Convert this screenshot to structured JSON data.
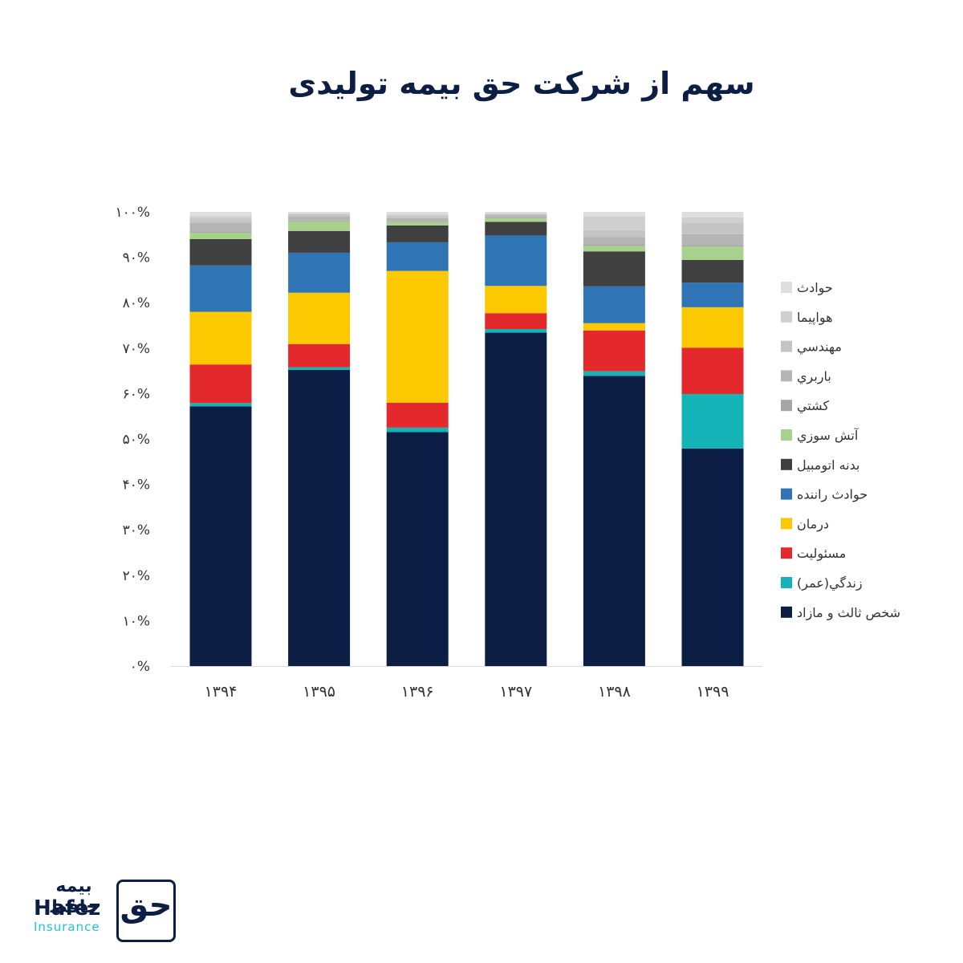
{
  "chart_data": {
    "type": "bar",
    "stacked": true,
    "normalized": true,
    "title": "سهم از شرکت حق بیمه تولیدی",
    "categories": [
      "۱۳۹۴",
      "۱۳۹۵",
      "۱۳۹۶",
      "۱۳۹۷",
      "۱۳۹۸",
      "۱۳۹۹"
    ],
    "ylim": [
      0,
      100
    ],
    "y_ticks": [
      "۰%",
      "۱۰%",
      "۲۰%",
      "۳۰%",
      "۴۰%",
      "۵۰%",
      "۶۰%",
      "۷۰%",
      "۸۰%",
      "۹۰%",
      "۱۰۰%"
    ],
    "y_tick_values": [
      0,
      10,
      20,
      30,
      40,
      50,
      60,
      70,
      80,
      90,
      100
    ],
    "legend_position": "right",
    "grid": false,
    "series": [
      {
        "name": "شخص ثالث و مازاد",
        "color": "#0c1e44",
        "values": [
          57.2,
          65.2,
          51.5,
          73.4,
          63.9,
          47.9
        ]
      },
      {
        "name": "زندگي(عمر)",
        "color": "#14b3b8",
        "values": [
          0.7,
          0.6,
          1.0,
          0.8,
          1.0,
          12.0
        ]
      },
      {
        "name": "مسئوليت",
        "color": "#e3292b",
        "values": [
          8.5,
          5.1,
          5.5,
          3.5,
          9.0,
          10.2
        ]
      },
      {
        "name": "درمان",
        "color": "#fcc800",
        "values": [
          11.6,
          11.3,
          29.0,
          6.0,
          1.6,
          8.9
        ]
      },
      {
        "name": "حوادث راننده",
        "color": "#2f74b5",
        "values": [
          10.2,
          8.8,
          6.3,
          11.1,
          8.1,
          5.4
        ]
      },
      {
        "name": "بدنه اتومبيل",
        "color": "#404040",
        "values": [
          5.8,
          4.8,
          3.7,
          3.0,
          7.7,
          5.0
        ]
      },
      {
        "name": "آتش سوزي",
        "color": "#a9d18e",
        "values": [
          1.4,
          2.1,
          0.8,
          0.8,
          1.2,
          3.0
        ]
      },
      {
        "name": "كشتي",
        "color": "#a6a6a6",
        "values": [
          0.3,
          0.2,
          0.2,
          0.2,
          0.4,
          0.3
        ]
      },
      {
        "name": "باربري",
        "color": "#b5b5b5",
        "values": [
          1.9,
          0.9,
          0.6,
          0.4,
          1.6,
          2.4
        ]
      },
      {
        "name": "مهندسي",
        "color": "#c4c4c4",
        "values": [
          0.9,
          0.5,
          0.5,
          0.3,
          1.5,
          2.5
        ]
      },
      {
        "name": "هواپيما",
        "color": "#cfcfcf",
        "values": [
          0.6,
          0.2,
          0.3,
          0.2,
          3.0,
          1.2
        ]
      },
      {
        "name": "حوادث",
        "color": "#dedede",
        "values": [
          0.9,
          0.3,
          0.6,
          0.3,
          1.0,
          1.2
        ]
      }
    ]
  },
  "logo": {
    "text_fa": "بیمه حافظ",
    "text_en": "Hafez",
    "text_sub": "Insurance",
    "mark_glyph": "حق"
  }
}
